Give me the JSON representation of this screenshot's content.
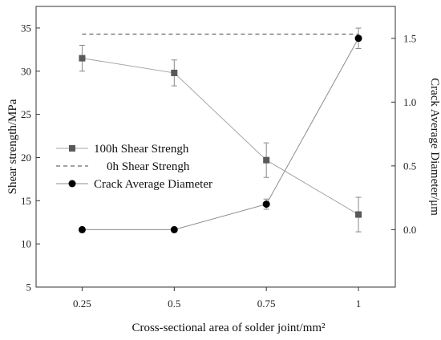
{
  "chart_data": {
    "type": "line",
    "xlabel": "Cross-sectional area of solder joint/mm²",
    "ylabel_left": "Shear strength/MPa",
    "ylabel_right": "Crack Average Diameter/μm",
    "x_ticks": [
      "0.25",
      "0.5",
      "0.75",
      "1"
    ],
    "x_values": [
      0.25,
      0.5,
      0.75,
      1.0
    ],
    "x_range": [
      0.125,
      1.1
    ],
    "y_left": {
      "range": [
        5,
        37.5
      ],
      "ticks": [
        5,
        10,
        15,
        20,
        25,
        30,
        35
      ]
    },
    "y_right": {
      "range": [
        -0.45,
        1.75
      ],
      "ticks": [
        0.0,
        0.5,
        1.0,
        1.5
      ],
      "tick_labels": [
        "0.0",
        "0.5",
        "1.0",
        "1.5"
      ]
    },
    "legend_position": "middle-left",
    "series": [
      {
        "name": "100h Shear Strengh",
        "axis": "left",
        "marker": "square",
        "line_style": "solid",
        "color": "#a6a6a6",
        "marker_color": "#595959",
        "x": [
          0.25,
          0.5,
          0.75,
          1.0
        ],
        "y": [
          31.5,
          29.8,
          19.7,
          13.4
        ],
        "error": [
          1.5,
          1.5,
          2.0,
          2.0
        ]
      },
      {
        "name": "0h Shear Strengh",
        "axis": "left",
        "marker": "none",
        "line_style": "dashed",
        "color": "#444444",
        "x": [
          0.25,
          1.0
        ],
        "y": [
          34.3,
          34.3
        ]
      },
      {
        "name": "Crack Average Diameter",
        "axis": "right",
        "marker": "circle",
        "line_style": "solid",
        "color": "#8c8c8c",
        "marker_color": "#000000",
        "x": [
          0.25,
          0.5,
          0.75,
          1.0
        ],
        "y": [
          0.0,
          0.0,
          0.2,
          1.5
        ],
        "error": [
          0,
          0,
          0.04,
          0.08
        ]
      }
    ]
  }
}
